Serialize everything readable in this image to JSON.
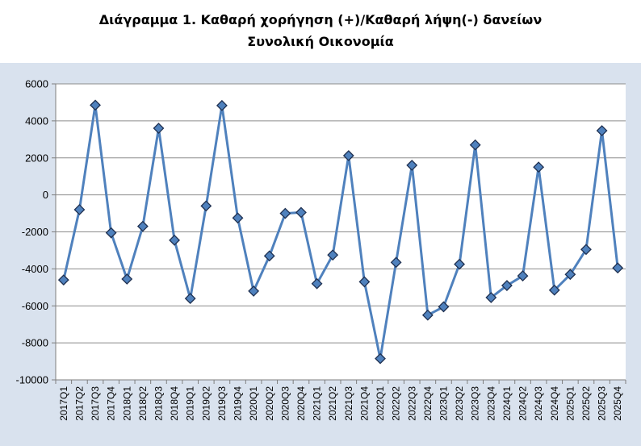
{
  "chart_data": {
    "type": "line",
    "title": "Διάγραμμα 1. Καθαρή χορήγηση (+)/Καθαρή λήψη(-) δανείων",
    "subtitle": "Συνολική Οικονομία",
    "xlabel": "",
    "ylabel": "",
    "ylim": [
      -10000,
      6000
    ],
    "yticks": [
      6000,
      4000,
      2000,
      0,
      -2000,
      -4000,
      -6000,
      -8000,
      -10000
    ],
    "grid": true,
    "legend": "none",
    "line_color": "#4f81bd",
    "marker_color": "#4f81bd",
    "marker_edge_color": "#1f3050",
    "categories": [
      "2017Q1",
      "2017Q2",
      "2017Q3",
      "2017Q4",
      "2018Q1",
      "2018Q2",
      "2018Q3",
      "2018Q4",
      "2019Q1",
      "2019Q2",
      "2019Q3",
      "2019Q4",
      "2020Q1",
      "2020Q2",
      "2020Q3",
      "2020Q4",
      "2021Q1",
      "2021Q2",
      "2021Q3",
      "2021Q4",
      "2022Q1",
      "2022Q2",
      "2022Q3",
      "2022Q4",
      "2023Q1",
      "2023Q2",
      "2023Q3",
      "2023Q4",
      "2024Q1",
      "2024Q2",
      "2024Q3",
      "2024Q4",
      "2025Q1",
      "2025Q2",
      "2025Q3",
      "2025Q4"
    ],
    "values": [
      -4600,
      -800,
      4850,
      -2050,
      -4550,
      -1700,
      3600,
      -2450,
      -5600,
      -600,
      4830,
      -1250,
      -5200,
      -3300,
      -1000,
      -950,
      -4800,
      -3250,
      2120,
      -4700,
      -8850,
      -3650,
      1600,
      -6500,
      -6050,
      -3750,
      2700,
      -5550,
      -4900,
      -4380,
      1500,
      -5150,
      -4300,
      -2950,
      3470,
      -3950
    ]
  }
}
